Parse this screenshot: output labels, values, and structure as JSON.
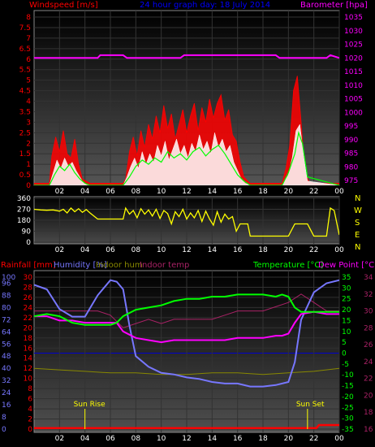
{
  "colors": {
    "background": "#000000",
    "wind_avg": "#00ff00",
    "wind_gust": "#ff0000",
    "wind_peak": "#ffffff",
    "barometer": "#ff00ff",
    "direction": "#ffff00",
    "temperature": "#00ff00",
    "dew_point": "#ff00ff",
    "humidity": "#7777ff",
    "indoor_hum": "#888800",
    "indoor_temp": "#aa2266",
    "rainfall": "#ff0000",
    "sun_marker": "#ffff00",
    "title": "#0000ff"
  },
  "header": {
    "windspeed_label": "Windspeed [m/s]",
    "title": "24 hour graph day: 18 July 2014",
    "barometer_label": "Barometer [hpa]",
    "rainfall_label": "Rainfall [mm]",
    "humidity_label": "Humidity [%]",
    "indoor_hum_label": "Indoor hum",
    "indoor_temp_label": "Indoor temp",
    "temperature_label": "Temperature [°C]",
    "dew_point_label": "Dew Point [°C]",
    "compass": [
      "N",
      "W",
      "S",
      "E",
      "N"
    ]
  },
  "annotations": {
    "sun_rise": "Sun Rise",
    "sun_set": "Sun Set"
  },
  "chart_data": [
    {
      "type": "line",
      "name": "wind",
      "x_ticks": [
        "02",
        "04",
        "06",
        "08",
        "10",
        "12",
        "14",
        "16",
        "18",
        "20",
        "22",
        "00"
      ],
      "left_ticks": [
        "0",
        "0.5",
        "1",
        "1.5",
        "2",
        "2.5",
        "3",
        "3.5",
        "4",
        "4.5",
        "5",
        "5.5",
        "6",
        "6.5",
        "7",
        "7.5",
        "8"
      ],
      "right_ticks": [
        "975",
        "980",
        "985",
        "990",
        "995",
        "1000",
        "1005",
        "1010",
        "1015",
        "1020",
        "1025",
        "1030",
        "1035"
      ],
      "ylim_wind": [
        0,
        8
      ],
      "ylim_pressure": [
        975,
        1035
      ],
      "xlim_hours": [
        0,
        24
      ],
      "barometer": {
        "x": [
          0,
          5,
          5.2,
          7,
          7.3,
          11.5,
          11.8,
          19,
          19.3,
          23,
          23.3,
          24
        ],
        "y": [
          1020,
          1020,
          1021,
          1021,
          1020,
          1020,
          1021,
          1021,
          1020,
          1020,
          1021,
          1020
        ]
      },
      "wind_gust": {
        "x": [
          0,
          1.2,
          1.4,
          1.7,
          2.0,
          2.3,
          2.6,
          2.9,
          3.2,
          3.5,
          3.8,
          4.1,
          4.4,
          4.7,
          5.0,
          7.0,
          7.2,
          7.5,
          7.8,
          8.1,
          8.4,
          8.7,
          9.0,
          9.3,
          9.6,
          9.9,
          10.2,
          10.5,
          10.8,
          11.1,
          11.4,
          11.7,
          12.0,
          12.3,
          12.6,
          12.9,
          13.2,
          13.5,
          13.8,
          14.1,
          14.4,
          14.7,
          15.0,
          15.3,
          15.6,
          15.9,
          16.2,
          16.5,
          16.8,
          17.0,
          19.5,
          19.8,
          20.1,
          20.4,
          20.7,
          21.0,
          21.3,
          21.6,
          22.0,
          24.0
        ],
        "y": [
          0.1,
          0.1,
          1.4,
          2.3,
          1.6,
          2.6,
          1.5,
          1.3,
          2.2,
          1.0,
          0.3,
          0.2,
          0.1,
          0.1,
          0.1,
          0.1,
          0.3,
          1.6,
          2.3,
          1.4,
          2.6,
          1.8,
          2.9,
          2.2,
          3.3,
          2.5,
          3.8,
          2.7,
          3.4,
          2.2,
          2.9,
          3.6,
          2.5,
          3.3,
          3.9,
          2.6,
          3.7,
          3.0,
          4.1,
          3.2,
          3.9,
          4.3,
          3.1,
          3.6,
          2.4,
          2.1,
          1.1,
          0.4,
          0.2,
          0.1,
          0.1,
          0.8,
          1.9,
          4.5,
          5.2,
          3.0,
          0.6,
          0.2,
          0.1,
          0.1
        ]
      },
      "wind_peak": {
        "x": [
          0,
          1.2,
          1.5,
          1.8,
          2.1,
          2.4,
          2.7,
          3.0,
          3.3,
          3.6,
          3.9,
          4.2,
          7.0,
          7.3,
          7.6,
          7.9,
          8.2,
          8.5,
          8.8,
          9.1,
          9.4,
          9.7,
          10.0,
          10.3,
          10.6,
          10.9,
          11.2,
          11.5,
          11.8,
          12.1,
          12.4,
          12.7,
          13.0,
          13.3,
          13.6,
          13.9,
          14.2,
          14.5,
          14.8,
          15.1,
          15.4,
          15.7,
          16.0,
          16.3,
          16.6,
          17.0,
          19.5,
          20.0,
          20.3,
          20.6,
          20.9,
          21.2,
          21.5,
          24.0
        ],
        "y": [
          0,
          0,
          0.6,
          1.2,
          0.8,
          1.3,
          0.9,
          1.1,
          0.7,
          0.4,
          0.1,
          0,
          0,
          0.4,
          0.9,
          1.3,
          0.8,
          1.6,
          1.0,
          1.5,
          1.1,
          1.9,
          1.4,
          2.1,
          1.2,
          1.7,
          2.2,
          1.5,
          1.9,
          1.3,
          2.0,
          1.6,
          2.4,
          1.7,
          2.1,
          1.5,
          2.5,
          1.8,
          2.2,
          1.6,
          1.9,
          1.1,
          0.7,
          0.3,
          0.1,
          0,
          0,
          0.5,
          1.3,
          2.6,
          2.9,
          1.4,
          0.2,
          0
        ]
      },
      "wind_avg": {
        "x": [
          0,
          1.2,
          1.6,
          2.0,
          2.4,
          2.8,
          3.2,
          3.6,
          4.0,
          4.4,
          7.0,
          7.5,
          8.0,
          8.5,
          9.0,
          9.5,
          10.0,
          10.5,
          11.0,
          11.5,
          12.0,
          12.5,
          13.0,
          13.5,
          14.0,
          14.5,
          15.0,
          15.5,
          16.0,
          16.5,
          17.0,
          19.5,
          20.0,
          20.5,
          20.8,
          21.1,
          21.5,
          24.0
        ],
        "y": [
          0,
          0,
          0.5,
          0.9,
          0.7,
          1.0,
          0.6,
          0.3,
          0.1,
          0,
          0,
          0.4,
          0.9,
          1.2,
          1.0,
          1.3,
          1.1,
          1.6,
          1.3,
          1.5,
          1.2,
          1.6,
          1.8,
          1.4,
          1.7,
          1.9,
          1.5,
          1.0,
          0.5,
          0.2,
          0,
          0,
          0.6,
          1.5,
          2.5,
          2.0,
          0.4,
          0
        ]
      }
    },
    {
      "type": "line",
      "name": "wind_direction",
      "x_ticks": [
        "02",
        "04",
        "06",
        "08",
        "10",
        "12",
        "14",
        "16",
        "18",
        "20",
        "22",
        "00"
      ],
      "left_ticks": [
        "0",
        "90",
        "180",
        "270",
        "360"
      ],
      "ylim": [
        0,
        360
      ],
      "x": [
        0,
        0.5,
        1.0,
        1.5,
        2.0,
        2.3,
        2.6,
        2.9,
        3.2,
        3.5,
        3.8,
        4.1,
        4.4,
        5.0,
        5.5,
        6.0,
        7.0,
        7.2,
        7.5,
        7.8,
        8.1,
        8.4,
        8.7,
        9.0,
        9.3,
        9.6,
        9.9,
        10.2,
        10.5,
        10.8,
        11.1,
        11.4,
        11.7,
        12.0,
        12.3,
        12.6,
        12.9,
        13.2,
        13.5,
        13.8,
        14.1,
        14.4,
        14.7,
        15.0,
        15.3,
        15.6,
        15.9,
        16.2,
        16.5,
        16.8,
        17.0,
        17.5,
        18.0,
        18.5,
        19.0,
        19.5,
        20.0,
        20.5,
        21.0,
        21.5,
        22.0,
        22.5,
        23.0,
        23.3,
        23.6,
        24.0
      ],
      "y": [
        270,
        265,
        262,
        265,
        255,
        270,
        240,
        280,
        250,
        275,
        245,
        268,
        240,
        190,
        190,
        190,
        190,
        280,
        230,
        260,
        200,
        275,
        230,
        265,
        215,
        270,
        195,
        260,
        235,
        150,
        250,
        210,
        270,
        190,
        240,
        200,
        260,
        170,
        255,
        190,
        140,
        250,
        165,
        230,
        190,
        210,
        90,
        150,
        150,
        150,
        50,
        50,
        50,
        50,
        50,
        50,
        50,
        150,
        150,
        150,
        50,
        50,
        50,
        280,
        260,
        60
      ]
    },
    {
      "type": "line",
      "name": "temperature_humidity",
      "x_ticks": [
        "02",
        "04",
        "06",
        "08",
        "10",
        "12",
        "14",
        "16",
        "18",
        "20",
        "22",
        "00"
      ],
      "humidity_ticks": [
        "0",
        "8",
        "16",
        "24",
        "32",
        "40",
        "48",
        "56",
        "64",
        "72",
        "80",
        "88",
        "96",
        "100"
      ],
      "rain_ticks": [
        "0",
        "2",
        "4",
        "6",
        "8",
        "10",
        "12",
        "14",
        "16",
        "18",
        "20",
        "22",
        "24",
        "26",
        "28",
        "30"
      ],
      "temp_ticks": [
        "-35",
        "-30",
        "-25",
        "-20",
        "-15",
        "-10",
        "-5",
        "0",
        "5",
        "10",
        "15",
        "20",
        "25",
        "30",
        "35"
      ],
      "indoor_ticks": [
        "16",
        "18",
        "20",
        "22",
        "24",
        "26",
        "28",
        "30",
        "32",
        "34"
      ],
      "ylim_humidity": [
        0,
        100
      ],
      "ylim_rain": [
        0,
        30
      ],
      "ylim_temp": [
        -35,
        35
      ],
      "ylim_indoor": [
        16,
        34
      ],
      "temperature": {
        "x": [
          0,
          1,
          2,
          3,
          4,
          5,
          6,
          6.5,
          7,
          8,
          9,
          10,
          11,
          12,
          13,
          14,
          15,
          16,
          17,
          18,
          19,
          19.5,
          20,
          20.5,
          21,
          22,
          23,
          24
        ],
        "y": [
          17,
          18,
          17,
          14,
          13,
          13,
          13,
          14,
          17,
          20,
          21,
          22,
          24,
          25,
          25,
          26,
          26,
          27,
          27,
          27,
          26,
          27,
          26,
          21,
          19,
          19,
          19,
          19
        ]
      },
      "dew_point": {
        "x": [
          0,
          1,
          2,
          3,
          4,
          5,
          6,
          6.5,
          7,
          8,
          9,
          10,
          11,
          12,
          13,
          14,
          15,
          16,
          17,
          18,
          19,
          19.5,
          20,
          20.5,
          21,
          22,
          23,
          24
        ],
        "y": [
          17,
          17,
          15,
          15,
          14,
          14,
          14,
          14,
          10,
          7,
          6,
          5,
          6,
          6,
          6,
          6,
          6,
          7,
          7,
          7,
          8,
          8,
          9,
          14,
          18,
          19,
          18,
          18
        ]
      },
      "humidity": {
        "x": [
          0,
          1,
          2,
          3,
          4,
          5,
          6,
          6.5,
          7,
          7.5,
          8,
          9,
          10,
          11,
          12,
          13,
          14,
          15,
          16,
          17,
          18,
          19,
          20,
          20.5,
          21,
          22,
          23,
          24
        ],
        "y": [
          95,
          92,
          79,
          74,
          74,
          88,
          98,
          97,
          92,
          68,
          48,
          41,
          37,
          36,
          34,
          33,
          31,
          30,
          30,
          28,
          28,
          29,
          31,
          44,
          72,
          90,
          96,
          98
        ]
      },
      "indoor_hum": {
        "x": [
          0,
          2,
          4,
          6,
          8,
          10,
          12,
          14,
          16,
          18,
          20,
          22,
          24
        ],
        "y": [
          40,
          39,
          38,
          37,
          37,
          36,
          36,
          37,
          37,
          36,
          37,
          38,
          40
        ]
      },
      "indoor_temp": {
        "x": [
          0,
          1,
          2,
          3,
          4,
          5,
          6,
          7,
          8,
          9,
          10,
          11,
          12,
          13,
          14,
          15,
          16,
          17,
          18,
          19,
          20,
          21,
          22,
          23,
          24
        ],
        "y": [
          30,
          30,
          30,
          30,
          30,
          30,
          29.5,
          28,
          28.5,
          29,
          28.5,
          29,
          29,
          29,
          29,
          29.5,
          30,
          30,
          30,
          30.5,
          31,
          32,
          31,
          30,
          30
        ]
      },
      "rainfall": {
        "x": [
          0,
          22.2,
          22.4,
          24
        ],
        "y": [
          0.2,
          0.2,
          0.8,
          0.8
        ]
      },
      "sun_rise_hour": 4.0,
      "sun_set_hour": 21.5
    }
  ]
}
